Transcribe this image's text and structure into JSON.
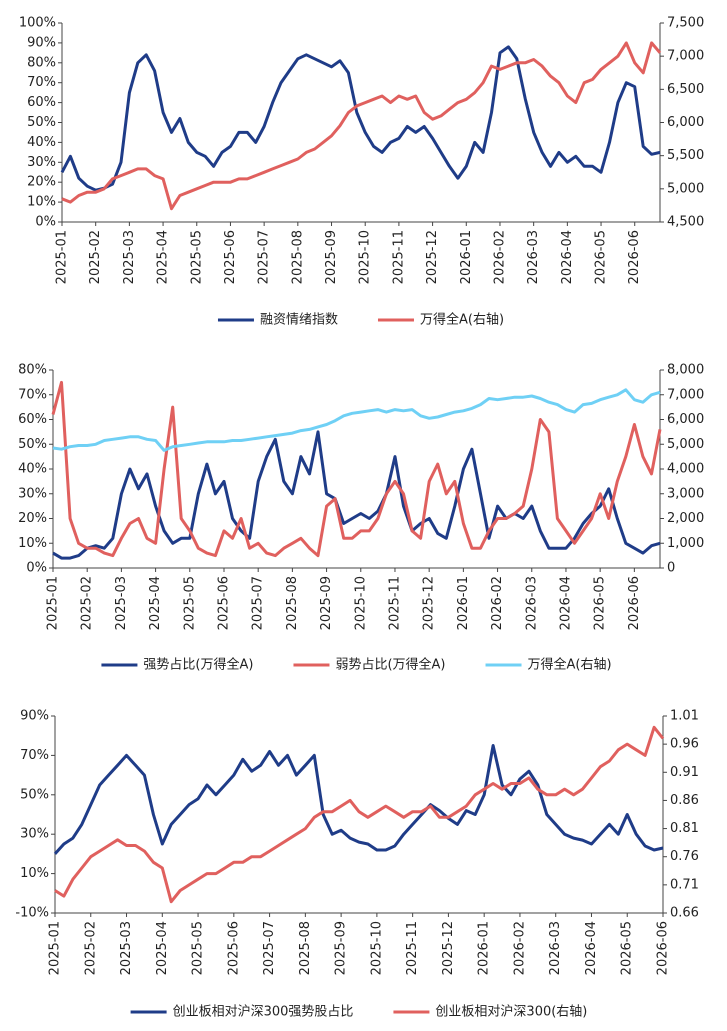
{
  "chart_data": [
    {
      "type": "line",
      "categories": [
        "2025-01",
        null,
        null,
        null,
        "2025-02",
        null,
        null,
        null,
        "2025-03",
        null,
        null,
        null,
        "2025-04",
        null,
        null,
        null,
        "2025-05",
        null,
        null,
        null,
        "2025-06",
        null,
        null,
        null,
        "2025-07",
        null,
        null,
        null,
        "2025-08",
        null,
        null,
        null,
        "2025-09",
        null,
        null,
        null,
        "2025-10",
        null,
        null,
        null,
        "2025-11",
        null,
        null,
        null,
        "2025-12",
        null,
        null,
        null,
        "2026-01",
        null,
        null,
        null,
        "2026-02",
        null,
        null,
        null,
        "2026-03",
        null,
        null,
        null,
        "2026-04",
        null,
        null,
        null,
        "2026-05",
        null,
        null,
        null,
        "2026-06",
        null,
        null,
        null
      ],
      "ylim": [
        0,
        100
      ],
      "yticks": [
        {
          "value": 0,
          "label": "0%"
        },
        {
          "value": 10,
          "label": "10%"
        },
        {
          "value": 20,
          "label": "20%"
        },
        {
          "value": 30,
          "label": "30%"
        },
        {
          "value": 40,
          "label": "40%"
        },
        {
          "value": 50,
          "label": "50%"
        },
        {
          "value": 60,
          "label": "60%"
        },
        {
          "value": 70,
          "label": "70%"
        },
        {
          "value": 80,
          "label": "80%"
        },
        {
          "value": 90,
          "label": "90%"
        },
        {
          "value": 100,
          "label": "100%"
        }
      ],
      "y2lim": [
        4500,
        7500
      ],
      "y2ticks": [
        {
          "value": 4500,
          "label": "4,500"
        },
        {
          "value": 5000,
          "label": "5,000"
        },
        {
          "value": 5500,
          "label": "5,500"
        },
        {
          "value": 6000,
          "label": "6,000"
        },
        {
          "value": 6500,
          "label": "6,500"
        },
        {
          "value": 7000,
          "label": "7,000"
        },
        {
          "value": 7500,
          "label": "7,500"
        }
      ],
      "legend": "bottom",
      "series": [
        {
          "name": "融资情绪指数",
          "color": "#1f3c88",
          "values": [
            25,
            33,
            22,
            18,
            16,
            17,
            19,
            30,
            65,
            80,
            84,
            76,
            55,
            45,
            52,
            40,
            35,
            33,
            28,
            35,
            38,
            45,
            45,
            40,
            48,
            60,
            70,
            76,
            82,
            84,
            82,
            80,
            78,
            81,
            75,
            55,
            45,
            38,
            35,
            40,
            42,
            48,
            45,
            48,
            42,
            35,
            28,
            22,
            28,
            40,
            35,
            55,
            85,
            88,
            82,
            62,
            45,
            35,
            28,
            35,
            30,
            33,
            28,
            28,
            25,
            40,
            60,
            70,
            68,
            38,
            34,
            35
          ]
        },
        {
          "name": "万得全A(右轴)",
          "color": "#e0605e",
          "axis": "y2",
          "values": [
            4850,
            4800,
            4900,
            4950,
            4950,
            5000,
            5150,
            5200,
            5250,
            5300,
            5300,
            5200,
            5150,
            4700,
            4900,
            4950,
            5000,
            5050,
            5100,
            5100,
            5100,
            5150,
            5150,
            5200,
            5250,
            5300,
            5350,
            5400,
            5450,
            5550,
            5600,
            5700,
            5800,
            5950,
            6150,
            6250,
            6300,
            6350,
            6400,
            6300,
            6400,
            6350,
            6400,
            6150,
            6050,
            6100,
            6200,
            6300,
            6350,
            6450,
            6600,
            6850,
            6800,
            6850,
            6900,
            6900,
            6950,
            6850,
            6700,
            6600,
            6400,
            6300,
            6600,
            6650,
            6800,
            6900,
            7000,
            7200,
            6900,
            6750,
            7200,
            7050
          ]
        }
      ]
    },
    {
      "type": "line",
      "categories": [
        "2025-01",
        null,
        null,
        null,
        "2025-02",
        null,
        null,
        null,
        "2025-03",
        null,
        null,
        null,
        "2025-04",
        null,
        null,
        null,
        "2025-05",
        null,
        null,
        null,
        "2025-06",
        null,
        null,
        null,
        "2025-07",
        null,
        null,
        null,
        "2025-08",
        null,
        null,
        null,
        "2025-09",
        null,
        null,
        null,
        "2025-10",
        null,
        null,
        null,
        "2025-11",
        null,
        null,
        null,
        "2025-12",
        null,
        null,
        null,
        "2026-01",
        null,
        null,
        null,
        "2026-02",
        null,
        null,
        null,
        "2026-03",
        null,
        null,
        null,
        "2026-04",
        null,
        null,
        null,
        "2026-05",
        null,
        null,
        null,
        "2026-06",
        null,
        null,
        null
      ],
      "ylim": [
        0,
        80
      ],
      "yticks": [
        {
          "value": 0,
          "label": "0%"
        },
        {
          "value": 10,
          "label": "10%"
        },
        {
          "value": 20,
          "label": "20%"
        },
        {
          "value": 30,
          "label": "30%"
        },
        {
          "value": 40,
          "label": "40%"
        },
        {
          "value": 50,
          "label": "50%"
        },
        {
          "value": 60,
          "label": "60%"
        },
        {
          "value": 70,
          "label": "70%"
        },
        {
          "value": 80,
          "label": "80%"
        }
      ],
      "y2lim": [
        0,
        8000
      ],
      "y2ticks": [
        0,
        {
          "value": 1000,
          "label": "1,000"
        },
        {
          "value": 2000,
          "label": "2,000"
        },
        {
          "value": 3000,
          "label": "3,000"
        },
        {
          "value": 4000,
          "label": "4,000"
        },
        {
          "value": 5000,
          "label": "5,000"
        },
        {
          "value": 6000,
          "label": "6,000"
        },
        {
          "value": 7000,
          "label": "7,000"
        },
        {
          "value": 8000,
          "label": "8,000"
        }
      ],
      "legend": "bottom",
      "series": [
        {
          "name": "强势占比(万得全A)",
          "color": "#1f3c88",
          "values": [
            6,
            4,
            4,
            5,
            8,
            9,
            8,
            12,
            30,
            40,
            32,
            38,
            25,
            15,
            10,
            12,
            12,
            30,
            42,
            30,
            35,
            20,
            15,
            12,
            35,
            45,
            52,
            35,
            30,
            45,
            38,
            55,
            30,
            28,
            18,
            20,
            22,
            20,
            23,
            30,
            45,
            25,
            15,
            18,
            20,
            14,
            12,
            25,
            40,
            48,
            30,
            12,
            25,
            20,
            22,
            20,
            25,
            15,
            8,
            8,
            8,
            12,
            18,
            22,
            25,
            32,
            20,
            10,
            8,
            6,
            9,
            10
          ]
        },
        {
          "name": "弱势占比(万得全A)",
          "color": "#e0605e",
          "values": [
            62,
            75,
            20,
            10,
            8,
            8,
            6,
            5,
            12,
            18,
            20,
            12,
            10,
            40,
            65,
            20,
            15,
            8,
            6,
            5,
            15,
            12,
            20,
            8,
            10,
            6,
            5,
            8,
            10,
            12,
            8,
            5,
            25,
            28,
            12,
            12,
            15,
            15,
            20,
            30,
            35,
            30,
            15,
            12,
            35,
            42,
            30,
            35,
            18,
            8,
            8,
            15,
            20,
            20,
            22,
            25,
            40,
            60,
            55,
            20,
            15,
            10,
            15,
            20,
            30,
            20,
            35,
            45,
            58,
            45,
            38,
            56
          ]
        },
        {
          "name": "万得全A(右轴)",
          "color": "#6fd0f5",
          "axis": "y2",
          "values": [
            4850,
            4800,
            4900,
            4950,
            4950,
            5000,
            5150,
            5200,
            5250,
            5300,
            5300,
            5200,
            5150,
            4750,
            4900,
            4950,
            5000,
            5050,
            5100,
            5100,
            5100,
            5150,
            5150,
            5200,
            5250,
            5300,
            5350,
            5400,
            5450,
            5550,
            5600,
            5700,
            5800,
            5950,
            6150,
            6250,
            6300,
            6350,
            6400,
            6300,
            6400,
            6350,
            6400,
            6150,
            6050,
            6100,
            6200,
            6300,
            6350,
            6450,
            6600,
            6850,
            6800,
            6850,
            6900,
            6900,
            6950,
            6850,
            6700,
            6600,
            6400,
            6300,
            6600,
            6650,
            6800,
            6900,
            7000,
            7200,
            6800,
            6700,
            7000,
            7100
          ]
        }
      ]
    },
    {
      "type": "line",
      "categories": [
        "2025-01",
        null,
        null,
        null,
        "2025-02",
        null,
        null,
        null,
        "2025-03",
        null,
        null,
        null,
        "2025-04",
        null,
        null,
        null,
        "2025-05",
        null,
        null,
        null,
        "2025-06",
        null,
        null,
        null,
        "2025-07",
        null,
        null,
        null,
        "2025-08",
        null,
        null,
        null,
        "2025-09",
        null,
        null,
        null,
        "2025-10",
        null,
        null,
        null,
        "2025-11",
        null,
        null,
        null,
        "2025-12",
        null,
        null,
        null,
        "2026-01",
        null,
        null,
        null,
        "2026-02",
        null,
        null,
        null,
        "2026-03",
        null,
        null,
        null,
        "2026-04",
        null,
        null,
        null,
        "2026-05",
        null,
        null,
        null,
        "2026-06"
      ],
      "ylim": [
        -10,
        90
      ],
      "yticks": [
        {
          "value": -10,
          "label": "-10%"
        },
        {
          "value": 10,
          "label": "10%"
        },
        {
          "value": 30,
          "label": "30%"
        },
        {
          "value": 50,
          "label": "50%"
        },
        {
          "value": 70,
          "label": "70%"
        },
        {
          "value": 90,
          "label": "90%"
        }
      ],
      "y2lim": [
        0.66,
        1.01
      ],
      "y2ticks": [
        0.66,
        0.71,
        0.76,
        0.81,
        0.86,
        0.91,
        0.96,
        1.01
      ],
      "legend": "bottom",
      "series": [
        {
          "name": "创业板相对沪深300强势股占比",
          "color": "#1f3c88",
          "values": [
            20,
            25,
            28,
            35,
            45,
            55,
            60,
            65,
            70,
            65,
            60,
            40,
            25,
            35,
            40,
            45,
            48,
            55,
            50,
            55,
            60,
            68,
            62,
            65,
            72,
            65,
            70,
            60,
            65,
            70,
            40,
            30,
            32,
            28,
            26,
            25,
            22,
            22,
            24,
            30,
            35,
            40,
            45,
            42,
            38,
            35,
            42,
            40,
            50,
            75,
            55,
            50,
            58,
            62,
            55,
            40,
            35,
            30,
            28,
            27,
            25,
            30,
            35,
            30,
            40,
            30,
            24,
            22,
            23
          ]
        },
        {
          "name": "创业板相对沪深300(右轴)",
          "color": "#e0605e",
          "axis": "y2",
          "values": [
            0.7,
            0.69,
            0.72,
            0.74,
            0.76,
            0.77,
            0.78,
            0.79,
            0.78,
            0.78,
            0.77,
            0.75,
            0.74,
            0.68,
            0.7,
            0.71,
            0.72,
            0.73,
            0.73,
            0.74,
            0.75,
            0.75,
            0.76,
            0.76,
            0.77,
            0.78,
            0.79,
            0.8,
            0.81,
            0.83,
            0.84,
            0.84,
            0.85,
            0.86,
            0.84,
            0.83,
            0.84,
            0.85,
            0.84,
            0.83,
            0.84,
            0.84,
            0.85,
            0.83,
            0.83,
            0.84,
            0.85,
            0.87,
            0.88,
            0.89,
            0.88,
            0.89,
            0.89,
            0.9,
            0.88,
            0.87,
            0.87,
            0.88,
            0.87,
            0.88,
            0.9,
            0.92,
            0.93,
            0.95,
            0.96,
            0.95,
            0.94,
            0.99,
            0.97
          ]
        }
      ]
    }
  ]
}
